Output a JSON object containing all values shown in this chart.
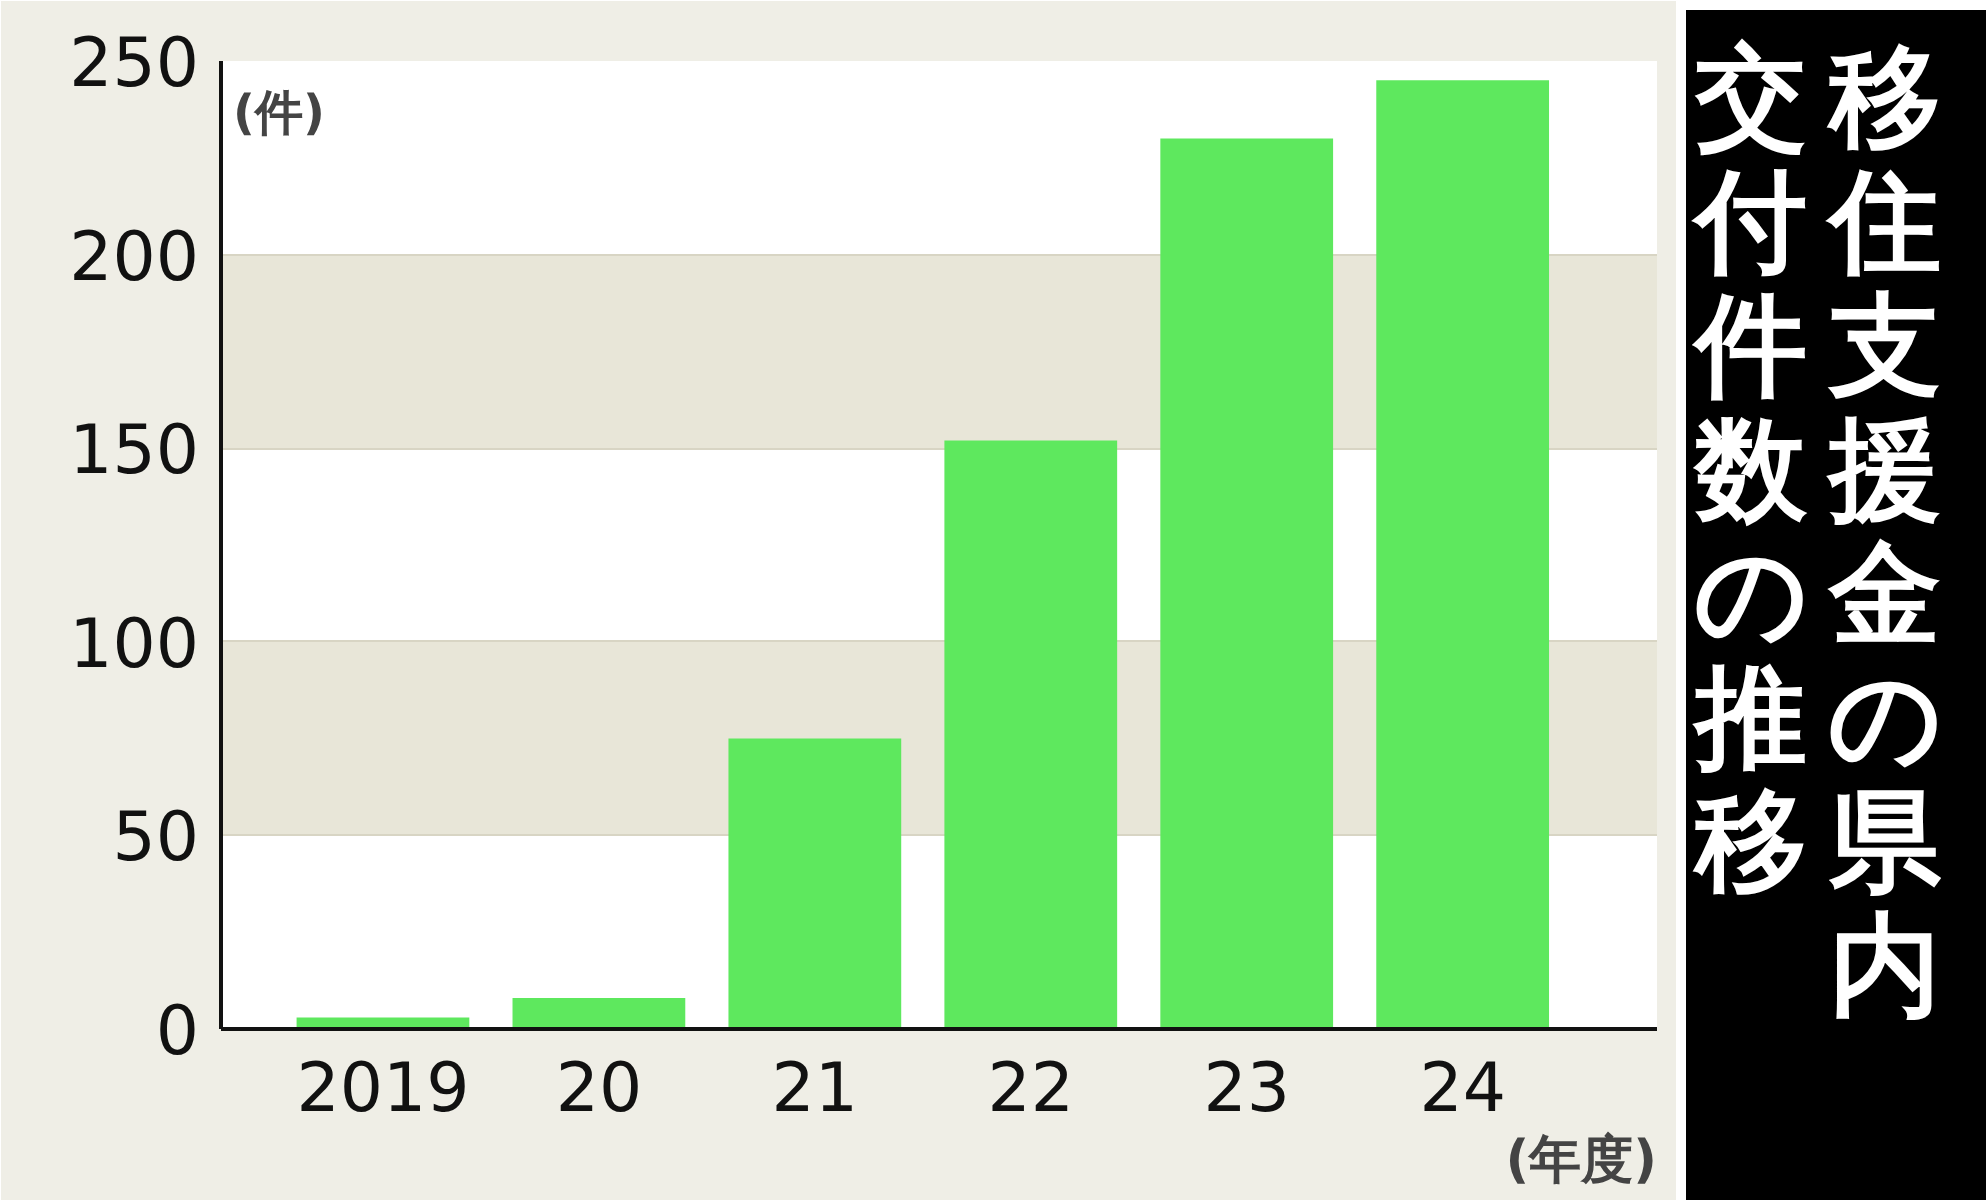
{
  "chart_data": {
    "type": "bar",
    "title": "移住支援金の県内交付件数の推移",
    "xlabel": "(年度)",
    "ylabel": "(件)",
    "categories": [
      "2019",
      "20",
      "21",
      "22",
      "23",
      "24"
    ],
    "values": [
      3,
      8,
      75,
      152,
      230,
      245
    ],
    "color": "#5ee85e",
    "ylim": [
      0,
      250
    ],
    "yticks": [
      0,
      50,
      100,
      150,
      200,
      250
    ],
    "grid": "y"
  }
}
